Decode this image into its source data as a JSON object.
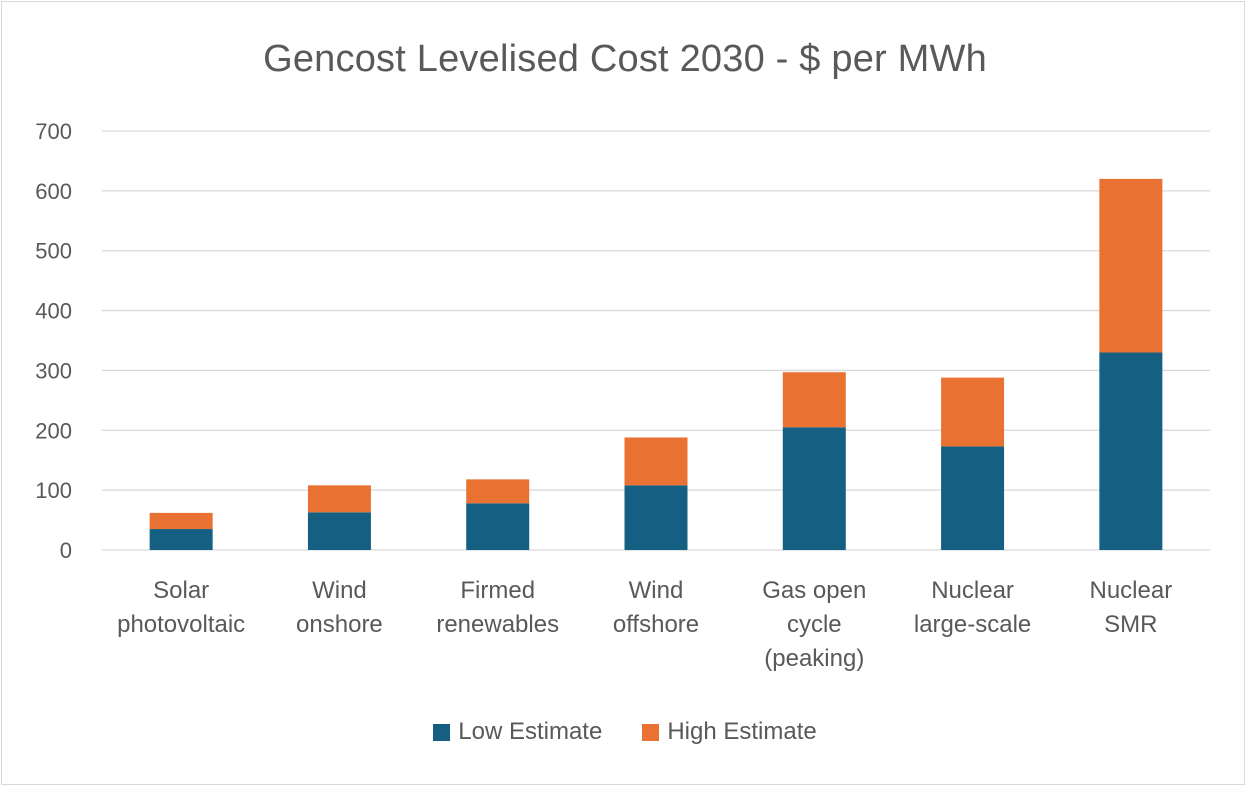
{
  "chart_data": {
    "type": "bar",
    "stacked": true,
    "title": "Gencost Levelised Cost 2030 - $ per MWh",
    "xlabel": "",
    "ylabel": "",
    "ylim": [
      0,
      700
    ],
    "yticks": [
      0,
      100,
      200,
      300,
      400,
      500,
      600,
      700
    ],
    "grid": true,
    "legend_position": "bottom",
    "categories": [
      [
        "Solar",
        "photovoltaic"
      ],
      [
        "Wind",
        "onshore"
      ],
      [
        "Firmed",
        "renewables"
      ],
      [
        "Wind",
        "offshore"
      ],
      [
        "Gas open",
        "cycle",
        "(peaking)"
      ],
      [
        "Nuclear",
        "large-scale"
      ],
      [
        "Nuclear",
        "SMR"
      ]
    ],
    "series": [
      {
        "name": "Low Estimate",
        "color": "#156082",
        "values": [
          35,
          63,
          78,
          108,
          205,
          173,
          330
        ]
      },
      {
        "name": "High Estimate",
        "color": "#E97132",
        "values": [
          27,
          45,
          40,
          80,
          92,
          115,
          290
        ]
      }
    ]
  }
}
